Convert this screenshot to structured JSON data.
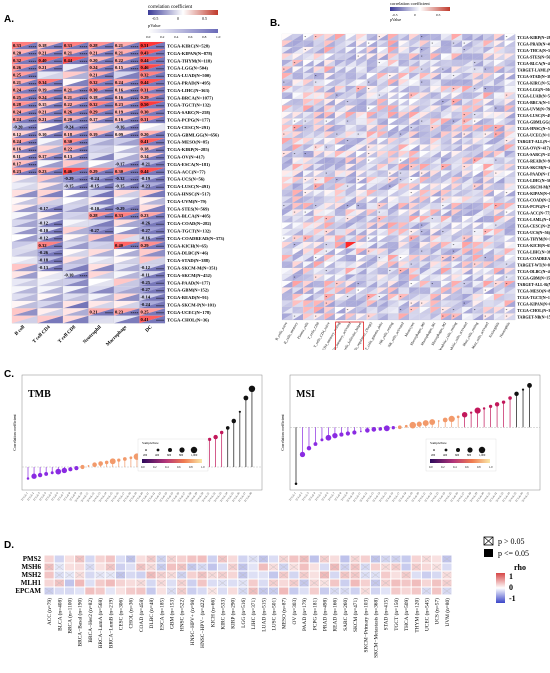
{
  "panel_labels": {
    "a": "A.",
    "b": "B.",
    "c": "C.",
    "d": "D."
  },
  "colors": {
    "pos": "#c0392b",
    "neg": "#3b3b98",
    "lightpos": "#f3b8b0",
    "lightneg": "#c9c9ee",
    "stem": "#222222"
  },
  "panel_a": {
    "legend_title": "correlation coefficient",
    "legend_ticks": [
      "-0.5",
      "0",
      "0.5"
    ],
    "legend_sub": "pValue",
    "legend_sub_ticks": [
      "0.0",
      "0.2",
      "0.4",
      "0.6",
      "0.8",
      "1.0"
    ],
    "columns": [
      "B cell",
      "T cell CD4",
      "T cell CD8",
      "Neutrophil",
      "Macrophage",
      "DC"
    ],
    "rows": [
      "TCGA-KIRC(N=528)",
      "TCGA-KIPAN(N=878)",
      "TCGA-THYM(N=118)",
      "TCGA-LGG(N=504)",
      "TCGA-LUAD(N=500)",
      "TCGA-PRAD(N=495)",
      "TCGA-LIHC(N=363)",
      "TCGA-BRCA(N=1077)",
      "TCGA-TGCT(N=132)",
      "TCGA-SARC(N=258)",
      "TCGA-PCPG(N=177)",
      "TCGA-CESC(N=291)",
      "TCGA-GBMLGG(N=656)",
      "TCGA-MESO(N=85)",
      "TCGA-KIRP(N=285)",
      "TCGA-OV(N=417)",
      "TCGA-ESCA(N=181)",
      "TCGA-ACC(N=77)",
      "TCGA-UCS(N=56)",
      "TCGA-LUSC(N=491)",
      "TCGA-HNSC(N=517)",
      "TCGA-UVM(N=79)",
      "TCGA-STES(N=569)",
      "TCGA-BLCA(N=405)",
      "TCGA-COAD(N=282)",
      "TCGA-TGCT(N=132)",
      "TCGA-COADREAD(N=373)",
      "TCGA-KICH(N=65)",
      "TCGA-DLBC(N=46)",
      "TCGA-STAD(N=388)",
      "TCGA-SKCM-M(N=351)",
      "TCGA-SKCM(N=452)",
      "TCGA-PAAD(N=177)",
      "TCGA-GBM(N=152)",
      "TCGA-READ(N=91)",
      "TCGA-SKCM-P(N=101)",
      "TCGA-UCEC(N=178)",
      "TCGA-CHOL(N=36)"
    ],
    "values": [
      [
        "0.33",
        "0.18",
        "0.33",
        "0.28",
        "0.21",
        "0.51"
      ],
      [
        "0.20",
        "0.21",
        "0.21",
        "0.21",
        "0.21",
        "0.43"
      ],
      [
        "0.32",
        "0.40",
        "0.44",
        "0.20",
        "0.22",
        "0.44"
      ],
      [
        "0.26",
        "0.21",
        "",
        "0.24",
        "0.15",
        "0.46"
      ],
      [
        "0.25",
        "",
        "",
        "0.21",
        "",
        "0.32"
      ],
      [
        "0.21",
        "0.34",
        "",
        "0.32",
        "0.24",
        "0.44"
      ],
      [
        "0.24",
        "0.19",
        "0.21",
        "0.30",
        "0.16",
        "0.31"
      ],
      [
        "0.25",
        "0.24",
        "0.21",
        "0.18",
        "0.16",
        "0.29"
      ],
      [
        "0.28",
        "0.15",
        "0.22",
        "0.32",
        "0.23",
        "0.50"
      ],
      [
        "0.24",
        "0.21",
        "0.26",
        "0.29",
        "0.19",
        "0.30"
      ],
      [
        "0.24",
        "0.21",
        "0.20",
        "0.17",
        "0.16",
        "0.31"
      ],
      [
        "-0.20",
        "",
        "-0.24",
        "",
        "-0.16",
        ""
      ],
      [
        "0.12",
        "0.10",
        "0.18",
        "0.19",
        "0.09",
        "0.20"
      ],
      [
        "0.24",
        "",
        "0.30",
        "",
        "",
        "0.41"
      ],
      [
        "0.16",
        "",
        "0.22",
        "",
        "",
        "0.18"
      ],
      [
        "0.11",
        "0.17",
        "0.13",
        "",
        "",
        "0.14"
      ],
      [
        "0.17",
        "",
        "",
        "",
        "-0.17",
        "-0.21"
      ],
      [
        "0.23",
        "0.23",
        "0.46",
        "0.29",
        "0.30",
        "0.44"
      ],
      [
        "",
        "",
        "-0.29",
        "-0.24",
        "-0.32",
        "-0.19"
      ],
      [
        "",
        "",
        "-0.15",
        "-0.15",
        "-0.15",
        "-0.23"
      ],
      [
        "",
        "",
        "",
        "",
        "",
        ""
      ],
      [
        "",
        "",
        "",
        "",
        "",
        ""
      ],
      [
        "",
        "-0.17",
        "",
        "-0.10",
        "-0.29",
        ""
      ],
      [
        "",
        "",
        "",
        "0.28",
        "0.33",
        "0.23"
      ],
      [
        "",
        "-0.12",
        "",
        "",
        "",
        "-0.26"
      ],
      [
        "",
        "-0.10",
        "",
        "-0.27",
        "",
        "-0.27"
      ],
      [
        "",
        "-0.12",
        "",
        "",
        "",
        "-0.16"
      ],
      [
        "",
        "0.32",
        "",
        "",
        "0.40",
        "0.29"
      ],
      [
        "",
        "-0.26",
        "",
        "",
        "",
        ""
      ],
      [
        "",
        "-0.18",
        "",
        "",
        "",
        ""
      ],
      [
        "",
        "-0.13",
        "",
        "",
        "",
        "-0.12"
      ],
      [
        "",
        "",
        "-0.10",
        "",
        "",
        "-0.11"
      ],
      [
        "",
        "",
        "",
        "",
        "",
        "-0.25"
      ],
      [
        "",
        "",
        "",
        "",
        "",
        "-0.27"
      ],
      [
        "",
        "",
        "",
        "",
        "",
        "-0.14"
      ],
      [
        "",
        "",
        "",
        "",
        "",
        "-0.24"
      ],
      [
        "",
        "",
        "",
        "0.21",
        "0.23",
        "0.25"
      ],
      [
        "",
        "",
        "",
        "",
        "",
        "0.41"
      ]
    ]
  },
  "panel_b": {
    "legend_title": "correlation coefficient",
    "legend_ticks": [
      "-0.5",
      "0",
      "0.5"
    ],
    "legend_sub": "pValue",
    "columns": [
      "B_cells_naive",
      "B_cells_memory",
      "Plasma_cells",
      "T_cells_CD8",
      "T_cells_CD4_naive",
      "T_cells_CD4_memory_resting",
      "T_cells_CD4_memory_activated",
      "T_cells_follicular_helper",
      "T_cells_regulatory_(Tregs)",
      "T_cells_gamma_delta",
      "NK_cells_resting",
      "NK_cells_activated",
      "Monocytes",
      "Macrophages_M0",
      "Macrophages_M1",
      "Macrophages_M2",
      "Dendritic_cells_resting",
      "Dendritic_cells_activated",
      "Mast_cells_resting",
      "Mast_cells_activated",
      "Eosinophils",
      "Neutrophils"
    ],
    "rows": [
      "TCGA-KIRP(N=285)",
      "TCGA-PRAD(N=495)",
      "TCGA-THCA(N=503)",
      "TCGA-STES(N=569)",
      "TCGA-BLCA(N=405)",
      "TARGET-LAML(N=142)",
      "TCGA-STAD(N=388)",
      "TCGA-KIRC(N=528)",
      "TCGA-LGG(N=504)",
      "TCGA-LUAD(N=500)",
      "TCGA-BRCA(N=1077)",
      "TCGA-UVM(N=79)",
      "TCGA-LUSC(N=491)",
      "TCGA-GBMLGG(N=656)",
      "TCGA-HNSC(N=517)",
      "TCGA-UCEC(N=178)",
      "TARGET-ALL(N=86)",
      "TCGA-OV(N=417)",
      "TCGA-SARC(N=258)",
      "TCGA-READ(N=91)",
      "TCGA-SKCM(N=452)",
      "TCGA-PAAD(N=177)",
      "TCGA-LIHC(N=363)",
      "TCGA-SKCM-M(N=351)",
      "TCGA-KIPAN(N=878)",
      "TCGA-COAD(N=282)",
      "TCGA-PCPG(N=177)",
      "TCGA-ACC(N=77)",
      "TCGA-LAML(N=142)",
      "TCGA-CESC(N=291)",
      "TCGA-UCS(N=56)",
      "TCGA-THYM(N=118)",
      "TCGA-KICH(N=65)",
      "TCGA-LIHC(N=363)",
      "TCGA-COADREAD(N=373)",
      "TARGET-WT(N=80)",
      "TCGA-DLBC(N=46)",
      "TCGA-GBM(N=152)",
      "TARGET-ALL-R(N=99)",
      "TCGA-MESO(N=85)",
      "TCGA-TGCT(N=132)",
      "TCGA-KIPAN(N=878)",
      "TCGA-CHOL(N=36)",
      "TARGET-NB(N=153)"
    ]
  },
  "panel_c": {
    "tmb_title": "TMB",
    "msi_title": "MSI",
    "ylabel": "Correlation coefficient",
    "size_legend_title": "SampleSize",
    "size_legend_ticks": [
      "200",
      "400",
      "600",
      "800",
      "1,000"
    ],
    "color_legend_title": "-log10(pValue)",
    "color_legend_ticks": [
      "0.0",
      "0.2",
      "0.4",
      "0.6",
      "0.8",
      "1.0"
    ]
  },
  "panel_d": {
    "genes": [
      "PMS2",
      "MSH6",
      "MSH2",
      "MLH1",
      "EPCAM"
    ],
    "legend_ns": "p > 0.05",
    "legend_sig": "p <= 0.05",
    "legend_title": "rho",
    "legend_ticks": [
      "1",
      "0",
      "-1"
    ],
    "cancers": [
      "ACC (n=79)",
      "BLCA (n=408)",
      "BRCA (n=1100)",
      "BRCA−Basal (n=190)",
      "BRCA−Her2 (n=82)",
      "BRCA−LumA (n=568)",
      "BRCA−LumB (n=219)",
      "CESC (n=306)",
      "CHOL (n=36)",
      "COAD (n=458)",
      "DLBC (n=48)",
      "ESCA (n=185)",
      "GBM (n=153)",
      "HNSC (n=522)",
      "HNSC−HPV+ (n=98)",
      "HNSC−HPV− (n=422)",
      "KICH (n=66)",
      "KIRC (n=533)",
      "KIRP (n=290)",
      "LGG (n=516)",
      "LIHC (n=371)",
      "LUAD (n=515)",
      "LUSC (n=501)",
      "MESO (n=87)",
      "OV (n=303)",
      "PAAD (n=179)",
      "PCPG (n=181)",
      "PRAD (n=498)",
      "READ (n=166)",
      "SARC (n=260)",
      "SKCM (n=471)",
      "SKCM−Primary (n=103)",
      "SKCM−Metastasis (n=368)",
      "STAD (n=415)",
      "TGCT (n=150)",
      "THCA (n=509)",
      "THYM (n=120)",
      "UCEC (n=545)",
      "UCS (n=57)",
      "UVM (n=80)"
    ]
  },
  "chart_data": [
    {
      "type": "heatmap",
      "title": "",
      "xlabel": "",
      "ylabel": "",
      "x": [
        "B cell",
        "T cell CD4",
        "T cell CD8",
        "Neutrophil",
        "Macrophage",
        "DC"
      ],
      "note_values": "significant correlation coefficients printed in cells (see panel_a.values)"
    },
    {
      "type": "heatmap",
      "title": "",
      "x": [
        "B_cells_naive",
        "B_cells_memory",
        "Plasma_cells",
        "T_cells_CD8",
        "T_cells_CD4_naive",
        "T_cells_CD4_memory_resting",
        "T_cells_CD4_memory_activated",
        "T_cells_follicular_helper",
        "T_cells_regulatory_(Tregs)",
        "T_cells_gamma_delta",
        "NK_cells_resting",
        "NK_cells_activated",
        "Monocytes",
        "Macrophages_M0",
        "Macrophages_M1",
        "Macrophages_M2",
        "Dendritic_cells_resting",
        "Dendritic_cells_activated",
        "Mast_cells_resting",
        "Mast_cells_activated",
        "Eosinophils",
        "Neutrophils"
      ]
    },
    {
      "type": "scatter",
      "title": "TMB",
      "ylabel": "Correlation coefficient",
      "ylim": [
        -0.1,
        0.4
      ],
      "values": [
        -0.05,
        -0.04,
        -0.035,
        -0.03,
        -0.025,
        -0.02,
        -0.015,
        -0.01,
        -0.005,
        0.0,
        0.005,
        0.01,
        0.015,
        0.02,
        0.025,
        0.03,
        0.035,
        0.04,
        0.045,
        0.05,
        0.055,
        0.06,
        0.065,
        0.07,
        0.075,
        0.08,
        0.085,
        0.09,
        0.1,
        0.11,
        0.12,
        0.13,
        0.15,
        0.17,
        0.2,
        0.24,
        0.3,
        0.34
      ]
    },
    {
      "type": "scatter",
      "title": "MSI",
      "ylabel": "Correlation coefficient",
      "ylim": [
        -0.3,
        0.25
      ],
      "values": [
        -0.27,
        -0.13,
        -0.1,
        -0.08,
        -0.06,
        -0.05,
        -0.04,
        -0.035,
        -0.03,
        -0.025,
        -0.02,
        -0.015,
        -0.01,
        -0.008,
        -0.005,
        -0.002,
        0.0,
        0.005,
        0.01,
        0.015,
        0.02,
        0.025,
        0.03,
        0.035,
        0.04,
        0.05,
        0.06,
        0.07,
        0.08,
        0.09,
        0.1,
        0.11,
        0.12,
        0.14,
        0.16,
        0.18,
        0.2
      ]
    },
    {
      "type": "heatmap",
      "title": "",
      "legend": "rho",
      "rows": [
        "PMS2",
        "MSH6",
        "MSH2",
        "MLH1",
        "EPCAM"
      ]
    }
  ]
}
